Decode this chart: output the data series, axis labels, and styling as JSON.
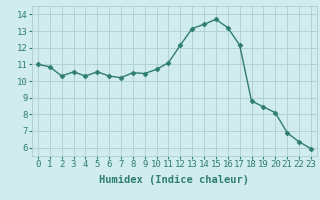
{
  "x": [
    0,
    1,
    2,
    3,
    4,
    5,
    6,
    7,
    8,
    9,
    10,
    11,
    12,
    13,
    14,
    15,
    16,
    17,
    18,
    19,
    20,
    21,
    22,
    23
  ],
  "y": [
    11.0,
    10.85,
    10.3,
    10.55,
    10.3,
    10.55,
    10.3,
    10.2,
    10.5,
    10.45,
    10.7,
    11.1,
    12.15,
    13.15,
    13.4,
    13.7,
    13.2,
    12.15,
    8.8,
    8.45,
    8.1,
    6.9,
    6.35,
    5.95
  ],
  "line_color": "#2e7d72",
  "marker": "D",
  "marker_size": 2.5,
  "bg_color": "#d0ecec",
  "grid_color": "#b0cece",
  "xlabel": "Humidex (Indice chaleur)",
  "ylabel": "",
  "title": "",
  "xlim": [
    -0.5,
    23.5
  ],
  "ylim": [
    5.5,
    14.5
  ],
  "yticks": [
    6,
    7,
    8,
    9,
    10,
    11,
    12,
    13,
    14
  ],
  "xticks": [
    0,
    1,
    2,
    3,
    4,
    5,
    6,
    7,
    8,
    9,
    10,
    11,
    12,
    13,
    14,
    15,
    16,
    17,
    18,
    19,
    20,
    21,
    22,
    23
  ],
  "tick_label_size": 6.5,
  "xlabel_size": 7.5,
  "xlabel_fontname": "monospace"
}
